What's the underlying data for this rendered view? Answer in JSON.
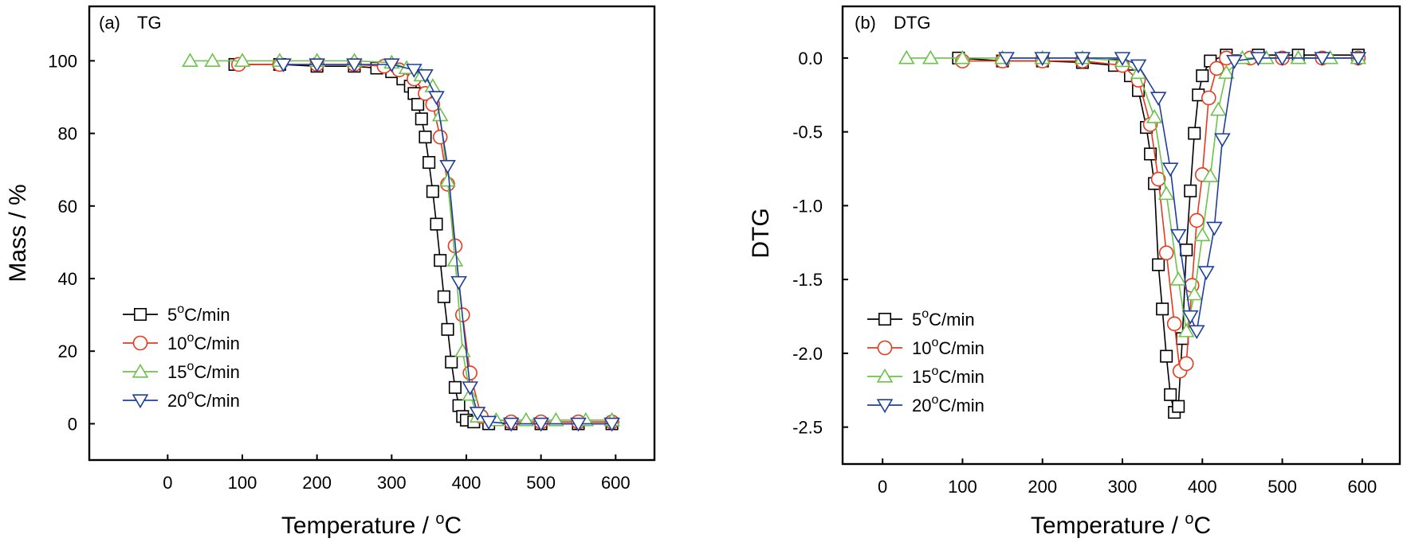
{
  "colors": {
    "s5": "#000000",
    "s10": "#e8391c",
    "s15": "#6cc24a",
    "s20": "#1f3f9c"
  },
  "chart_data": [
    {
      "type": "line",
      "panel_tag": "(a)",
      "title": "TG",
      "xlabel": "Temperature / ",
      "xlabel_unit": "C",
      "ylabel": "Mass / %",
      "xlim": [
        -105,
        652
      ],
      "ylim": [
        -10,
        115
      ],
      "xticks": [
        "0",
        "100",
        "200",
        "300",
        "400",
        "500",
        "600"
      ],
      "yticks": [
        "0",
        "20",
        "40",
        "60",
        "80",
        "100"
      ],
      "legend_position": "lower-left",
      "series": [
        {
          "name": "5",
          "unit": "C/min",
          "marker": "square",
          "color": "#000000",
          "x": [
            90,
            150,
            200,
            250,
            280,
            300,
            315,
            325,
            330,
            335,
            340,
            345,
            350,
            355,
            360,
            365,
            370,
            375,
            380,
            385,
            390,
            395,
            400,
            410,
            430,
            460,
            500,
            550,
            595
          ],
          "y": [
            99,
            99,
            98.5,
            98.5,
            98,
            97,
            95,
            93,
            91,
            88,
            84,
            79,
            72,
            64,
            55,
            45,
            35,
            26,
            17,
            10,
            5,
            2,
            1,
            0.5,
            0,
            0,
            0,
            0,
            0
          ]
        },
        {
          "name": "10",
          "unit": "C/min",
          "marker": "circle",
          "color": "#e8391c",
          "x": [
            95,
            150,
            200,
            250,
            290,
            310,
            330,
            345,
            355,
            365,
            375,
            385,
            395,
            405,
            420,
            460,
            500,
            550,
            595
          ],
          "y": [
            99,
            99,
            99,
            99,
            98.5,
            97.5,
            95,
            91,
            88,
            79,
            66,
            49,
            30,
            14,
            2,
            0.5,
            0.5,
            0.5,
            0.5
          ]
        },
        {
          "name": "15",
          "unit": "C/min",
          "marker": "triangle-up",
          "color": "#6cc24a",
          "x": [
            30,
            60,
            100,
            150,
            200,
            250,
            300,
            320,
            340,
            355,
            365,
            375,
            385,
            395,
            405,
            415,
            440,
            480,
            520,
            560,
            595
          ],
          "y": [
            100,
            100,
            100,
            100,
            100,
            100,
            99.5,
            98,
            96,
            93,
            85,
            67,
            45,
            20,
            8,
            2,
            1,
            1,
            1,
            1,
            1
          ]
        },
        {
          "name": "20",
          "unit": "C/min",
          "marker": "triangle-down",
          "color": "#1f3f9c",
          "x": [
            155,
            200,
            250,
            300,
            330,
            345,
            360,
            375,
            390,
            405,
            415,
            430,
            460,
            500,
            550,
            595
          ],
          "y": [
            99,
            99,
            99,
            99,
            97.5,
            96,
            90,
            71,
            39,
            10,
            3,
            0.5,
            0,
            0,
            0,
            0
          ]
        }
      ]
    },
    {
      "type": "line",
      "panel_tag": "(b)",
      "title": "DTG",
      "xlabel": "Temperature / ",
      "xlabel_unit": "C",
      "ylabel": "DTG",
      "xlim": [
        -50,
        647
      ],
      "ylim": [
        -2.75,
        0.35
      ],
      "xticks": [
        "0",
        "100",
        "200",
        "300",
        "400",
        "500",
        "600"
      ],
      "yticks": [
        "0.0",
        "-0.5",
        "-1.0",
        "-1.5",
        "-2.0",
        "-2.5"
      ],
      "legend_position": "lower-left",
      "series": [
        {
          "name": "5",
          "unit": "C/min",
          "marker": "square",
          "color": "#000000",
          "x": [
            95,
            150,
            200,
            250,
            290,
            310,
            320,
            330,
            335,
            340,
            345,
            350,
            355,
            360,
            365,
            370,
            375,
            380,
            385,
            390,
            395,
            400,
            410,
            430,
            470,
            520,
            595
          ],
          "y": [
            0,
            -0.02,
            -0.02,
            -0.03,
            -0.05,
            -0.12,
            -0.22,
            -0.47,
            -0.65,
            -0.85,
            -1.4,
            -1.7,
            -2.02,
            -2.28,
            -2.4,
            -2.36,
            -1.9,
            -1.3,
            -0.9,
            -0.51,
            -0.25,
            -0.12,
            -0.02,
            0.02,
            0.02,
            0.02,
            0.02
          ]
        },
        {
          "name": "10",
          "unit": "C/min",
          "marker": "circle",
          "color": "#e8391c",
          "x": [
            100,
            150,
            200,
            250,
            300,
            320,
            335,
            345,
            355,
            365,
            372,
            380,
            387,
            393,
            400,
            408,
            418,
            430,
            460,
            500,
            550,
            595
          ],
          "y": [
            -0.02,
            -0.02,
            -0.02,
            -0.02,
            -0.05,
            -0.15,
            -0.45,
            -0.82,
            -1.32,
            -1.8,
            -2.12,
            -2.07,
            -1.54,
            -1.1,
            -0.79,
            -0.27,
            -0.07,
            0,
            0,
            0,
            0,
            0
          ]
        },
        {
          "name": "15",
          "unit": "C/min",
          "marker": "triangle-up",
          "color": "#6cc24a",
          "x": [
            30,
            60,
            100,
            150,
            200,
            250,
            300,
            320,
            340,
            355,
            370,
            380,
            390,
            400,
            410,
            420,
            430,
            450,
            480,
            520,
            560,
            595
          ],
          "y": [
            0,
            0,
            0,
            0,
            0,
            0,
            -0.02,
            -0.1,
            -0.4,
            -0.92,
            -1.5,
            -1.85,
            -1.6,
            -1.2,
            -0.8,
            -0.35,
            -0.1,
            0,
            0,
            0,
            0,
            0
          ]
        },
        {
          "name": "20",
          "unit": "C/min",
          "marker": "triangle-down",
          "color": "#1f3f9c",
          "x": [
            155,
            200,
            250,
            300,
            320,
            345,
            360,
            370,
            385,
            393,
            405,
            415,
            425,
            440,
            470,
            500,
            550,
            595
          ],
          "y": [
            0,
            0,
            0,
            0,
            -0.05,
            -0.27,
            -0.75,
            -1.2,
            -1.75,
            -1.85,
            -1.45,
            -1.15,
            -0.55,
            -0.02,
            0,
            0,
            0,
            0
          ]
        }
      ]
    }
  ]
}
